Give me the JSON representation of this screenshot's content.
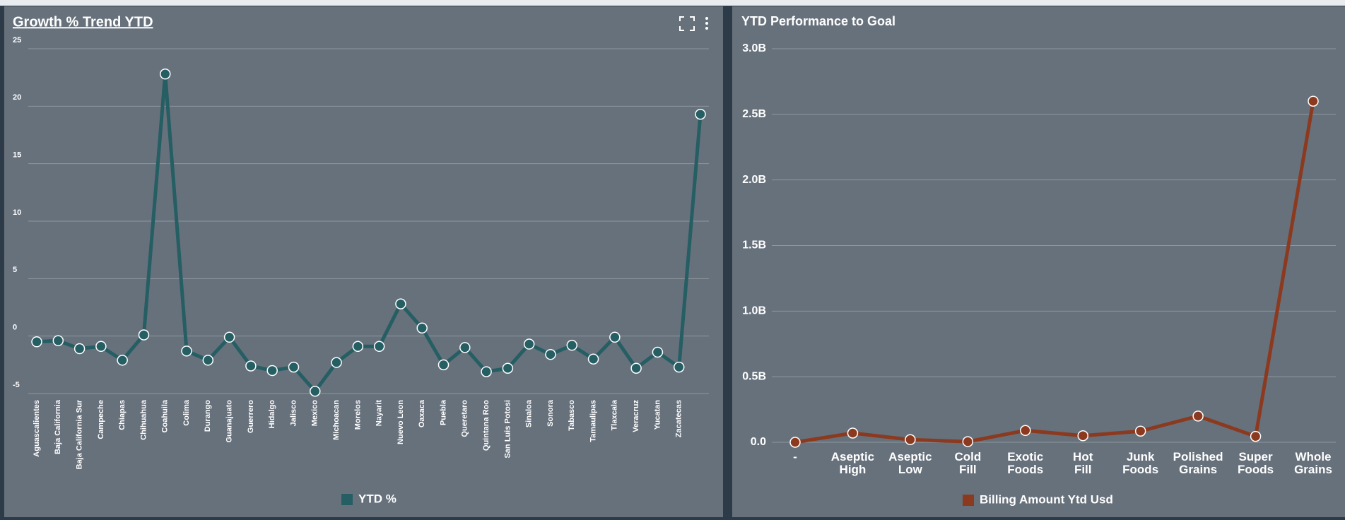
{
  "chart_data": [
    {
      "type": "line",
      "title": "Growth % Trend YTD",
      "categories": [
        "Aguascalientes",
        "Baja California",
        "Baja California Sur",
        "Campeche",
        "Chiapas",
        "Chihuahua",
        "Coahuila",
        "Colima",
        "Durango",
        "Guanajuato",
        "Guerrero",
        "Hidalgo",
        "Jalisco",
        "Mexico",
        "Michoacan",
        "Morelos",
        "Nayarit",
        "Nuevo Leon",
        "Oaxaca",
        "Puebla",
        "Queretaro",
        "Quintana Roo",
        "San Luis Potosi",
        "Sinaloa",
        "Sonora",
        "Tabasco",
        "Tamaulipas",
        "Tlaxcala",
        "Veracruz",
        "Yucatan",
        "Zacatecas",
        null
      ],
      "series": [
        {
          "name": "YTD %",
          "color": "#255e63",
          "values": [
            -0.5,
            -0.4,
            -1.1,
            -0.9,
            -2.1,
            0.1,
            22.8,
            -1.3,
            -2.1,
            -0.1,
            -2.6,
            -3.0,
            -2.7,
            -4.8,
            -2.3,
            -0.9,
            -0.9,
            2.8,
            0.7,
            -2.5,
            -1.0,
            -3.1,
            -2.8,
            -0.7,
            -1.6,
            -0.8,
            -2.0,
            -0.1,
            -2.8,
            -1.4,
            -2.7,
            19.3
          ]
        }
      ],
      "ylim": [
        -5,
        25
      ],
      "yticks": [
        -5,
        0,
        5,
        10,
        15,
        20,
        25
      ],
      "grid": true
    },
    {
      "type": "line",
      "title": "YTD Performance to Goal",
      "categories": [
        "-",
        "Aseptic High",
        "Aseptic Low",
        "Cold Fill",
        "Exotic Foods",
        "Hot Fill",
        "Junk Foods",
        "Polished Grains",
        "Super Foods",
        "Whole Grains"
      ],
      "series": [
        {
          "name": "Billing Amount Ytd Usd",
          "color": "#8b3a1f",
          "values": [
            0,
            70000000,
            20000000,
            5000000,
            90000000,
            50000000,
            85000000,
            200000000,
            45000000,
            2600000000
          ]
        }
      ],
      "ylim": [
        0,
        3000000000
      ],
      "yticks": [
        {
          "value": 0,
          "label": "0.0"
        },
        {
          "value": 500000000,
          "label": "0.5B"
        },
        {
          "value": 1000000000,
          "label": "1.0B"
        },
        {
          "value": 1500000000,
          "label": "1.5B"
        },
        {
          "value": 2000000000,
          "label": "2.0B"
        },
        {
          "value": 2500000000,
          "label": "2.5B"
        },
        {
          "value": 3000000000,
          "label": "3.0B"
        }
      ],
      "grid": true
    }
  ]
}
